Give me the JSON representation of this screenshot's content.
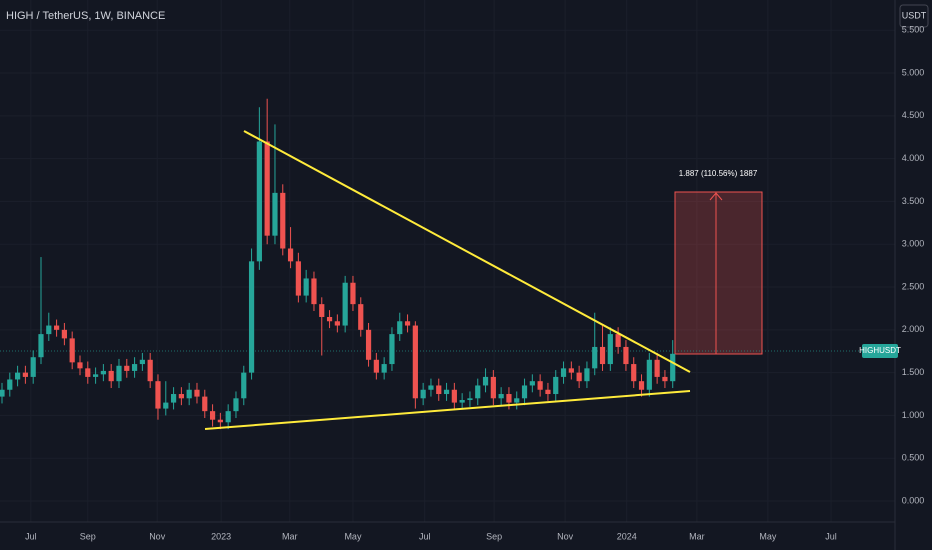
{
  "header": {
    "title": "HIGH / TetherUS, 1W, BINANCE",
    "currency": "USDT",
    "symbol_tag": "HIGHUSDT"
  },
  "annotation": "1.887 (110.56%) 1887",
  "chart_data": {
    "type": "candlestick",
    "open": [
      1.22,
      1.3,
      1.42,
      1.5,
      1.45,
      1.68,
      1.95,
      2.05,
      2.0,
      1.9,
      1.62,
      1.55,
      1.45,
      1.48,
      1.52,
      1.4,
      1.58,
      1.52,
      1.6,
      1.65,
      1.4,
      1.08,
      1.15,
      1.25,
      1.2,
      1.3,
      1.22,
      1.05,
      0.95,
      0.92,
      1.05,
      1.2,
      1.5,
      2.8,
      4.2,
      3.1,
      3.6,
      2.95,
      2.8,
      2.4,
      2.6,
      2.3,
      2.15,
      2.1,
      2.05,
      2.55,
      2.3,
      2.0,
      1.65,
      1.5,
      1.6,
      1.95,
      2.1,
      2.05,
      1.2,
      1.3,
      1.35,
      1.25,
      1.3,
      1.15,
      1.18,
      1.2,
      1.35,
      1.45,
      1.2,
      1.25,
      1.15,
      1.2,
      1.35,
      1.4,
      1.3,
      1.25,
      1.45,
      1.55,
      1.5,
      1.4,
      1.55,
      1.8,
      1.6,
      1.95,
      1.8,
      1.6,
      1.4,
      1.3,
      1.65,
      1.45,
      1.4
    ],
    "high": [
      1.38,
      1.5,
      1.58,
      1.58,
      1.76,
      2.85,
      2.2,
      2.12,
      2.08,
      1.98,
      1.7,
      1.63,
      1.56,
      1.6,
      1.6,
      1.66,
      1.66,
      1.68,
      1.73,
      1.73,
      1.48,
      1.4,
      1.33,
      1.33,
      1.38,
      1.38,
      1.3,
      1.13,
      1.03,
      1.13,
      1.28,
      1.58,
      2.95,
      4.6,
      4.7,
      4.4,
      3.7,
      3.2,
      2.9,
      2.7,
      2.68,
      2.38,
      2.23,
      2.18,
      2.63,
      2.63,
      2.38,
      2.08,
      1.73,
      1.68,
      2.03,
      2.2,
      2.18,
      2.1,
      1.38,
      1.43,
      1.43,
      1.38,
      1.38,
      1.26,
      1.28,
      1.43,
      1.55,
      1.53,
      1.33,
      1.33,
      1.28,
      1.43,
      1.48,
      1.48,
      1.38,
      1.53,
      1.63,
      1.63,
      1.58,
      1.63,
      2.2,
      2.05,
      2.03,
      2.03,
      1.88,
      1.68,
      1.48,
      1.73,
      1.73,
      1.53,
      1.88
    ],
    "low": [
      1.14,
      1.22,
      1.34,
      1.37,
      1.37,
      1.6,
      1.87,
      1.92,
      1.82,
      1.54,
      1.47,
      1.37,
      1.37,
      1.4,
      1.32,
      1.32,
      1.44,
      1.44,
      1.52,
      1.32,
      0.95,
      1.0,
      1.07,
      1.12,
      1.12,
      1.14,
      0.97,
      0.87,
      0.84,
      0.84,
      0.97,
      1.12,
      1.42,
      2.7,
      3.0,
      3.0,
      2.87,
      2.72,
      2.32,
      2.32,
      2.22,
      1.7,
      2.02,
      1.97,
      1.97,
      2.22,
      1.92,
      1.57,
      1.42,
      1.42,
      1.52,
      1.87,
      1.97,
      1.08,
      1.12,
      1.22,
      1.17,
      1.17,
      1.07,
      1.07,
      1.1,
      1.12,
      1.27,
      1.12,
      1.12,
      1.07,
      1.07,
      1.12,
      1.27,
      1.22,
      1.17,
      1.17,
      1.37,
      1.42,
      1.32,
      1.32,
      1.47,
      1.52,
      1.52,
      1.72,
      1.52,
      1.32,
      1.22,
      1.22,
      1.37,
      1.32,
      1.32
    ],
    "close": [
      1.3,
      1.42,
      1.5,
      1.45,
      1.68,
      1.95,
      2.05,
      2.0,
      1.9,
      1.62,
      1.55,
      1.45,
      1.48,
      1.52,
      1.4,
      1.58,
      1.52,
      1.6,
      1.65,
      1.4,
      1.08,
      1.15,
      1.25,
      1.2,
      1.3,
      1.22,
      1.05,
      0.95,
      0.92,
      1.05,
      1.2,
      1.5,
      2.8,
      4.2,
      3.1,
      3.6,
      2.95,
      2.8,
      2.4,
      2.6,
      2.3,
      2.15,
      2.1,
      2.05,
      2.55,
      2.3,
      2.0,
      1.65,
      1.5,
      1.6,
      1.95,
      2.1,
      2.05,
      1.2,
      1.3,
      1.35,
      1.25,
      1.3,
      1.15,
      1.18,
      1.2,
      1.35,
      1.45,
      1.2,
      1.25,
      1.15,
      1.2,
      1.35,
      1.4,
      1.3,
      1.25,
      1.45,
      1.55,
      1.5,
      1.4,
      1.55,
      1.8,
      1.6,
      1.95,
      1.8,
      1.6,
      1.4,
      1.3,
      1.65,
      1.45,
      1.4,
      1.72
    ],
    "up_color": "#26a69a",
    "down_color": "#ef5350",
    "xlim": [
      -0.256,
      114.5
    ],
    "xticks": [
      {
        "value": 3.7,
        "label": "Jul"
      },
      {
        "value": 11,
        "label": "Sep"
      },
      {
        "value": 19.9,
        "label": "Nov"
      },
      {
        "value": 28.1,
        "label": "2023"
      },
      {
        "value": 36.9,
        "label": "Mar"
      },
      {
        "value": 45,
        "label": "May"
      },
      {
        "value": 54.2,
        "label": "Jul"
      },
      {
        "value": 63.1,
        "label": "Sep"
      },
      {
        "value": 72.2,
        "label": "Nov"
      },
      {
        "value": 80.1,
        "label": "2024"
      },
      {
        "value": 89.1,
        "label": "Mar"
      },
      {
        "value": 98.2,
        "label": "May"
      },
      {
        "value": 106.3,
        "label": "Jul"
      }
    ],
    "ylim": [
      -0.245,
      5.853
    ],
    "yticks": [
      {
        "value": 0,
        "label": "0.000"
      },
      {
        "value": 0.5,
        "label": "0.500"
      },
      {
        "value": 1,
        "label": "1.000"
      },
      {
        "value": 1.5,
        "label": "1.500"
      },
      {
        "value": 2,
        "label": "2.000"
      },
      {
        "value": 2.5,
        "label": "2.500"
      },
      {
        "value": 3,
        "label": "3.000"
      },
      {
        "value": 3.5,
        "label": "3.500"
      },
      {
        "value": 4,
        "label": "4.000"
      },
      {
        "value": 4.5,
        "label": "4.500"
      },
      {
        "value": 5,
        "label": "5.000"
      },
      {
        "value": 5.5,
        "label": "5.500"
      }
    ],
    "grid": true
  }
}
